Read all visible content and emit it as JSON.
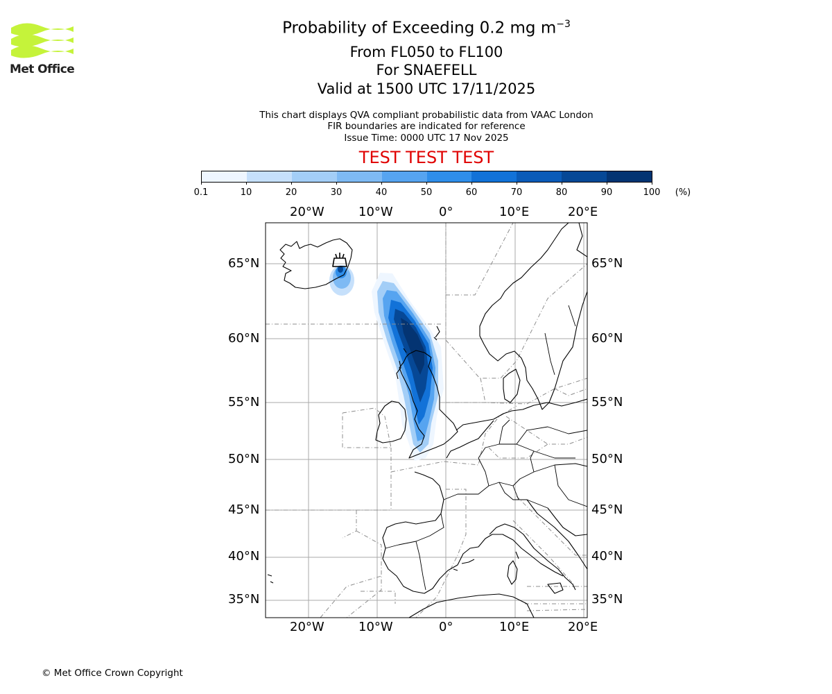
{
  "logo": {
    "text": "Met Office"
  },
  "header": {
    "title_main": "Probability of Exceeding 0.2 mg m",
    "title_sup": "−3",
    "level_range": "From FL050 to FL100",
    "volcano": "For SNAEFELL",
    "valid": "Valid at 1500 UTC 17/11/2025",
    "info1": "This chart displays QVA compliant probabilistic data from VAAC London",
    "info2": "FIR boundaries are indicated for reference",
    "issue": "Issue Time: 0000 UTC 17 Nov 2025",
    "test_banner": "TEST TEST TEST"
  },
  "colorbar": {
    "unit": "(%)",
    "ticks": [
      "0.1",
      "10",
      "20",
      "30",
      "40",
      "50",
      "60",
      "70",
      "80",
      "90",
      "100"
    ],
    "colors": [
      "#eef6ff",
      "#c6e0fb",
      "#a3cef7",
      "#7ebaf4",
      "#56a4f0",
      "#2f8eea",
      "#1272d8",
      "#0a5bb8",
      "#064896",
      "#043472"
    ]
  },
  "map": {
    "lon_labels": [
      "20°W",
      "10°W",
      "0°",
      "10°E",
      "20°E"
    ],
    "lat_labels": [
      "65°N",
      "60°N",
      "55°N",
      "50°N",
      "45°N",
      "40°N",
      "35°N"
    ],
    "grid_color": "#a8a8a8",
    "fir_color": "#8c8c8c"
  },
  "footer": {
    "copyright": "© Met Office Crown Copyright"
  }
}
